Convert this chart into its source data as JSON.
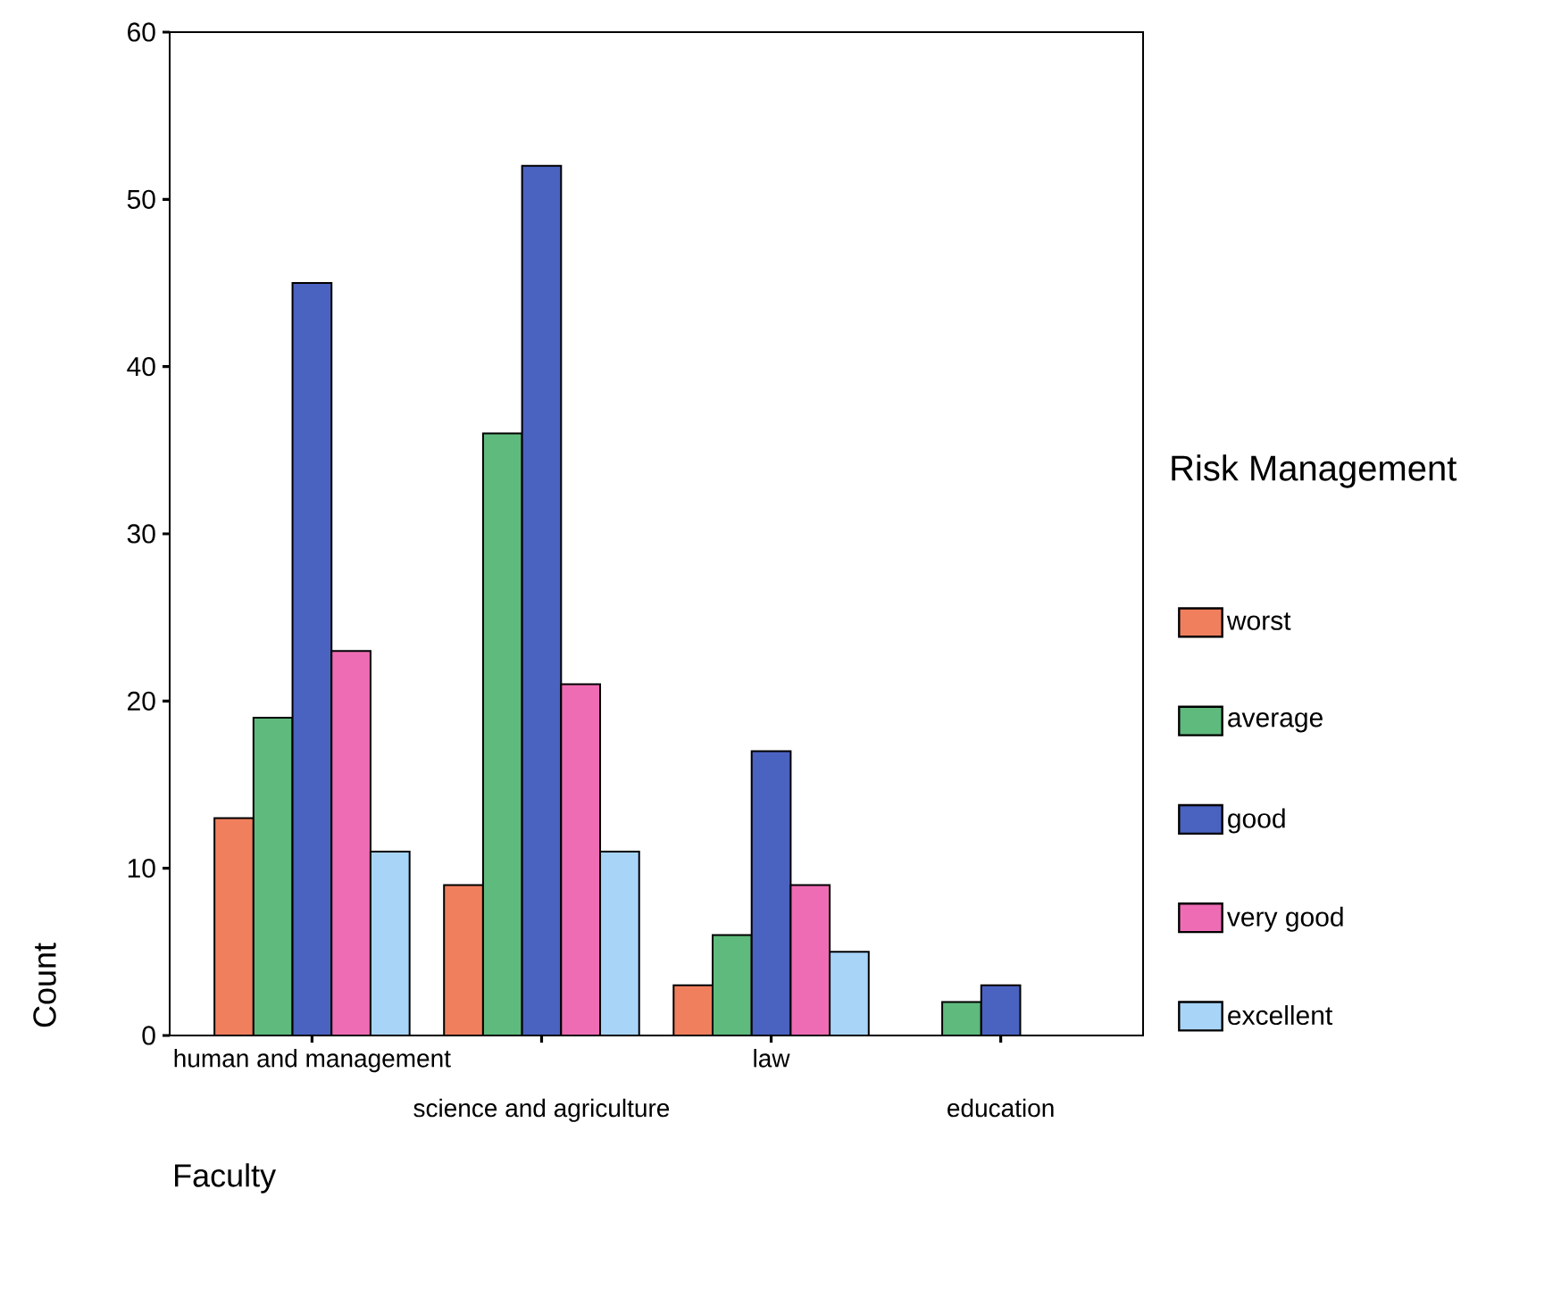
{
  "chart_data": {
    "type": "bar",
    "xlabel": "Faculty",
    "ylabel": "Count",
    "legend_title": "Risk Management",
    "categories": [
      "human and management",
      "science and agriculture",
      "law",
      "education"
    ],
    "series": [
      {
        "name": "worst",
        "color": "#f07f5e",
        "values": [
          13,
          9,
          3,
          null
        ]
      },
      {
        "name": "average",
        "color": "#5fba7d",
        "values": [
          19,
          36,
          6,
          2
        ]
      },
      {
        "name": "good",
        "color": "#4a62c0",
        "values": [
          45,
          52,
          17,
          3
        ]
      },
      {
        "name": "very good",
        "color": "#ee6cb4",
        "values": [
          23,
          21,
          9,
          null
        ]
      },
      {
        "name": "excellent",
        "color": "#a8d4f8",
        "values": [
          11,
          11,
          5,
          null
        ]
      }
    ],
    "ylim": [
      0,
      60
    ],
    "yticks": [
      0,
      10,
      20,
      30,
      40,
      50,
      60
    ],
    "legend": "right",
    "grid": false
  }
}
